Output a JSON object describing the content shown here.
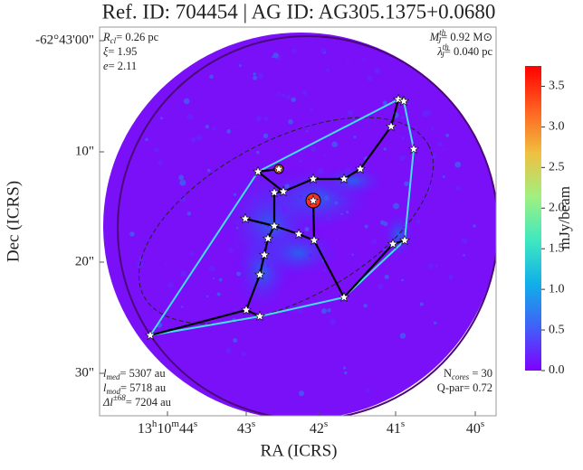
{
  "chart_data": {
    "type": "image",
    "title": "Ref. ID: 704454 | AG ID: AG305.1375+0.0680",
    "x_label": "RA (ICRS)",
    "y_label": "Dec (ICRS)",
    "xticks": [
      [
        "13",
        "h",
        "10",
        "m",
        "44",
        "s"
      ],
      [
        "43",
        "s"
      ],
      [
        "42",
        "s"
      ],
      [
        "41",
        "s"
      ],
      [
        "40",
        "s"
      ]
    ],
    "yticks": [
      "-62°43'00\"",
      "10\"",
      "20\"",
      "30\""
    ],
    "colorbar": {
      "label": "mJy/beam",
      "clim": [
        0,
        3.75
      ],
      "ticks": [
        {
          "value": 0,
          "label": "0.0"
        },
        {
          "value": 0.5,
          "label": "0.5"
        },
        {
          "value": 1,
          "label": "1.0"
        },
        {
          "value": 1.5,
          "label": "1.5"
        },
        {
          "value": 2,
          "label": "2.0"
        },
        {
          "value": 2.5,
          "label": "2.5"
        },
        {
          "value": 3,
          "label": "3.0"
        },
        {
          "value": 3.5,
          "label": "3.5"
        }
      ],
      "colors": [
        "#7f00ff",
        "#4060f8",
        "#10b0e8",
        "#40e8c0",
        "#a0f080",
        "#f0c040",
        "#ff6020",
        "#ff0000"
      ]
    },
    "annotations": {
      "top_left": [
        [
          {
            "i": "R"
          },
          {
            "sub": "cl"
          },
          {
            "t": "= 0.26 pc"
          }
        ],
        [
          {
            "i": "ξ"
          },
          {
            "t": "= 1.95"
          }
        ],
        [
          {
            "i": "e"
          },
          {
            "t": "= 2.11"
          }
        ]
      ],
      "top_right": [
        [
          {
            "i": "M"
          },
          {
            "sup": "th"
          },
          {
            "sub": "J"
          },
          {
            "t": "= 0.92 M⊙"
          }
        ],
        [
          {
            "i": "λ"
          },
          {
            "sup": "th"
          },
          {
            "sub": "J"
          },
          {
            "t": "= 0.040 pc"
          }
        ]
      ],
      "bottom_left": [
        [
          {
            "i": "l"
          },
          {
            "sub": "med"
          },
          {
            "t": "= 5307 au"
          }
        ],
        [
          {
            "i": "l"
          },
          {
            "sub": "mod"
          },
          {
            "t": "= 5718 au"
          }
        ],
        [
          {
            "i": "Δl"
          },
          {
            "sup": "±68"
          },
          {
            "t": "= 7204 au"
          }
        ]
      ],
      "bottom_right": [
        [
          {
            "t": "N"
          },
          {
            "sub": "cores"
          },
          {
            "t": " = 30"
          }
        ],
        [
          {
            "t": "Q-par= 0.72"
          }
        ]
      ]
    }
  }
}
